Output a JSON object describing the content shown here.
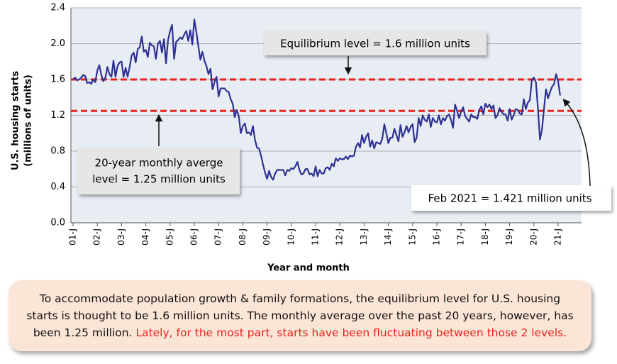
{
  "chart_data": {
    "type": "line",
    "y_label": [
      "U.S. housing starts",
      "(millions of units)"
    ],
    "x_label": "Year and month",
    "categories": [
      "01-J",
      null,
      null,
      null,
      null,
      null,
      null,
      null,
      null,
      null,
      null,
      null,
      "02-J",
      null,
      null,
      null,
      null,
      null,
      null,
      null,
      null,
      null,
      null,
      null,
      "03-J",
      null,
      null,
      null,
      null,
      null,
      null,
      null,
      null,
      null,
      null,
      null,
      "04-J",
      null,
      null,
      null,
      null,
      null,
      null,
      null,
      null,
      null,
      null,
      null,
      "05-J",
      null,
      null,
      null,
      null,
      null,
      null,
      null,
      null,
      null,
      null,
      null,
      "06-J",
      null,
      null,
      null,
      null,
      null,
      null,
      null,
      null,
      null,
      null,
      null,
      "07-J",
      null,
      null,
      null,
      null,
      null,
      null,
      null,
      null,
      null,
      null,
      null,
      "08-J",
      null,
      null,
      null,
      null,
      null,
      null,
      null,
      null,
      null,
      null,
      null,
      "09-J",
      null,
      null,
      null,
      null,
      null,
      null,
      null,
      null,
      null,
      null,
      null,
      "10-J",
      null,
      null,
      null,
      null,
      null,
      null,
      null,
      null,
      null,
      null,
      null,
      "11-J",
      null,
      null,
      null,
      null,
      null,
      null,
      null,
      null,
      null,
      null,
      null,
      "12-J",
      null,
      null,
      null,
      null,
      null,
      null,
      null,
      null,
      null,
      null,
      null,
      "13-J",
      null,
      null,
      null,
      null,
      null,
      null,
      null,
      null,
      null,
      null,
      null,
      "14-J",
      null,
      null,
      null,
      null,
      null,
      null,
      null,
      null,
      null,
      null,
      null,
      "15-J",
      null,
      null,
      null,
      null,
      null,
      null,
      null,
      null,
      null,
      null,
      null,
      "16-J",
      null,
      null,
      null,
      null,
      null,
      null,
      null,
      null,
      null,
      null,
      null,
      "17-J",
      null,
      null,
      null,
      null,
      null,
      null,
      null,
      null,
      null,
      null,
      null,
      "18-J",
      null,
      null,
      null,
      null,
      null,
      null,
      null,
      null,
      null,
      null,
      null,
      "19-J",
      null,
      null,
      null,
      null,
      null,
      null,
      null,
      null,
      null,
      null,
      null,
      "20-J",
      null,
      null,
      null,
      null,
      null,
      null,
      null,
      null,
      null,
      null,
      null,
      "21-J",
      null
    ],
    "series": [
      {
        "color": "#2e3192",
        "values": [
          1.6,
          1.62,
          1.59,
          1.6,
          1.62,
          1.65,
          1.64,
          1.56,
          1.57,
          1.55,
          1.6,
          1.57,
          1.7,
          1.76,
          1.65,
          1.58,
          1.62,
          1.74,
          1.66,
          1.63,
          1.81,
          1.63,
          1.75,
          1.79,
          1.8,
          1.63,
          1.73,
          1.63,
          1.74,
          1.87,
          1.9,
          1.79,
          1.94,
          1.96,
          2.08,
          1.91,
          1.93,
          1.85,
          2.01,
          1.98,
          1.97,
          1.83,
          2.0,
          2.03,
          1.9,
          2.05,
          1.78,
          2.04,
          2.14,
          2.21,
          1.83,
          2.02,
          2.04,
          2.07,
          2.05,
          2.1,
          2.14,
          2.03,
          2.15,
          1.99,
          2.27,
          2.13,
          1.97,
          1.82,
          1.91,
          1.81,
          1.75,
          1.66,
          1.72,
          1.49,
          1.57,
          1.63,
          1.41,
          1.5,
          1.5,
          1.5,
          1.47,
          1.46,
          1.38,
          1.33,
          1.18,
          1.26,
          1.19,
          1.0,
          1.08,
          1.11,
          1.0,
          1.01,
          0.98,
          1.08,
          0.93,
          0.84,
          0.83,
          0.75,
          0.65,
          0.56,
          0.49,
          0.58,
          0.51,
          0.48,
          0.55,
          0.59,
          0.59,
          0.59,
          0.59,
          0.53,
          0.59,
          0.58,
          0.61,
          0.6,
          0.63,
          0.68,
          0.59,
          0.54,
          0.55,
          0.6,
          0.6,
          0.54,
          0.55,
          0.52,
          0.63,
          0.52,
          0.59,
          0.55,
          0.55,
          0.61,
          0.62,
          0.59,
          0.66,
          0.63,
          0.72,
          0.69,
          0.72,
          0.71,
          0.71,
          0.74,
          0.71,
          0.75,
          0.74,
          0.75,
          0.85,
          0.89,
          0.84,
          0.98,
          0.89,
          0.96,
          1.0,
          0.85,
          0.92,
          0.83,
          0.9,
          0.89,
          0.88,
          0.94,
          1.1,
          1.0,
          0.89,
          0.95,
          0.95,
          1.05,
          0.98,
          0.91,
          1.09,
          0.96,
          1.01,
          1.08,
          1.01,
          1.07,
          1.1,
          0.9,
          0.95,
          1.17,
          1.08,
          1.2,
          1.15,
          1.13,
          1.21,
          1.07,
          1.17,
          1.13,
          1.12,
          1.2,
          1.1,
          1.17,
          1.14,
          1.19,
          1.21,
          1.15,
          1.06,
          1.32,
          1.25,
          1.17,
          1.24,
          1.29,
          1.19,
          1.16,
          1.13,
          1.21,
          1.18,
          1.18,
          1.16,
          1.26,
          1.3,
          1.21,
          1.33,
          1.29,
          1.32,
          1.27,
          1.31,
          1.17,
          1.2,
          1.28,
          1.24,
          1.21,
          1.21,
          1.14,
          1.27,
          1.15,
          1.2,
          1.27,
          1.26,
          1.22,
          1.21,
          1.38,
          1.27,
          1.34,
          1.37,
          1.6,
          1.62,
          1.57,
          1.28,
          0.93,
          1.04,
          1.27,
          1.49,
          1.39,
          1.46,
          1.52,
          1.55,
          1.66,
          1.58,
          1.421
        ]
      }
    ],
    "ylim": [
      0,
      2.4
    ],
    "yticks": [
      {
        "value": 0,
        "label": "0.0"
      },
      0.4,
      0.8,
      1.2,
      1.6,
      {
        "value": 2,
        "label": "2.0"
      },
      2.4
    ],
    "grid": true,
    "reference_lines": [
      {
        "value": 1.6,
        "color": "#e8221e"
      },
      {
        "value": 1.25,
        "color": "#e8221e"
      }
    ],
    "annotations": [
      {
        "text": "Equilibrium level  = 1.6 million units"
      },
      {
        "lines": [
          "20-year monthly averge",
          "level = 1.25 million units"
        ]
      },
      {
        "text": "Feb 2021 = 1.421 million units"
      }
    ]
  },
  "note": {
    "text": "To accommodate population growth & family formations, the equilibrium level for U.S. housing starts is thought to be 1.6 million units. The monthly average over the past 20 years, however, has been 1.25 million.",
    "highlight": "Lately, for the most part, starts have been fluctuating between those 2 levels."
  }
}
